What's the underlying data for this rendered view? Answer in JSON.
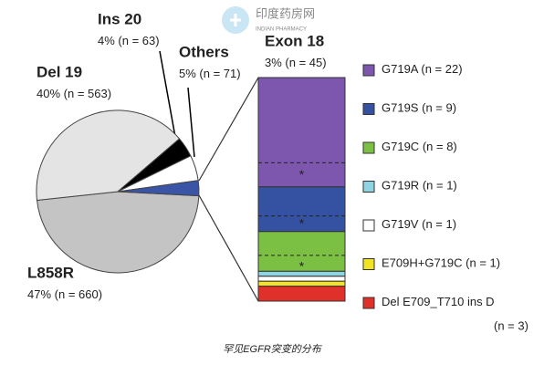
{
  "chart_data": [
    {
      "type": "pie",
      "categories": [
        "L858R",
        "Del 19",
        "Ins 20",
        "Others",
        "Exon 18"
      ],
      "values": [
        47,
        40,
        4,
        5,
        3
      ],
      "value_labels": [
        "47%",
        "40%",
        "4%",
        "5%",
        "3%"
      ],
      "count_labels": [
        "(n = 660)",
        "(n = 563)",
        "(n = 63)",
        "(n = 71)",
        "(n = 45)"
      ],
      "colors": [
        "#c4c4c4",
        "#e4e4e4",
        "#000000",
        "#ffffff",
        "#3a55a5"
      ]
    },
    {
      "type": "stacked-bar",
      "series": [
        {
          "name": "G719A",
          "color": "#7d56ad",
          "values": [
            22
          ],
          "value_labels": [
            "(n = 22)"
          ]
        },
        {
          "name": "G719S",
          "color": "#3451a2",
          "values": [
            9
          ],
          "value_labels": [
            "(n = 9)"
          ]
        },
        {
          "name": "G719C",
          "color": "#7cc043",
          "values": [
            8
          ],
          "value_labels": [
            "(n = 8)"
          ]
        },
        {
          "name": "G719R",
          "color": "#8fd4e2",
          "values": [
            1
          ],
          "value_labels": [
            "(n = 1)"
          ]
        },
        {
          "name": "G719V",
          "color": "#ffffff",
          "values": [
            1
          ],
          "value_labels": [
            "(n = 1)"
          ]
        },
        {
          "name": "E709H+G719C",
          "color": "#f2e425",
          "values": [
            1
          ],
          "value_labels": [
            "(n = 1)"
          ]
        },
        {
          "name": "Del E709_T710 ins D",
          "color": "#e0302a",
          "values": [
            3
          ],
          "value_labels": [
            "(n = 3)"
          ]
        }
      ],
      "marker": "*"
    }
  ],
  "caption": "罕见EGFR突变的分布",
  "watermark": {
    "name": "印度药房网",
    "subtitle": "INDIAN PHARMACY"
  }
}
